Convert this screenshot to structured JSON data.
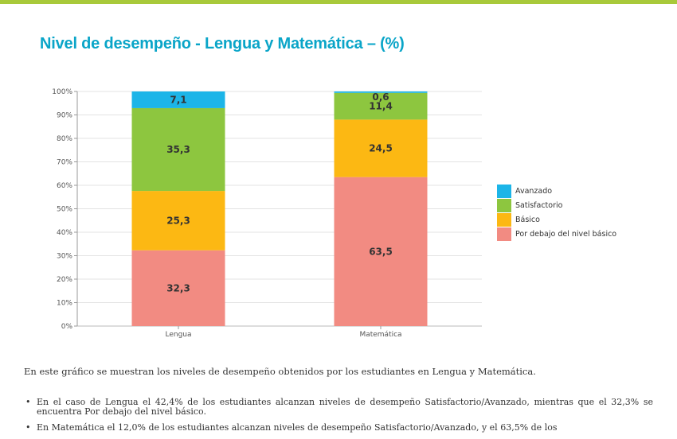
{
  "page": {
    "title": "Nivel de desempeño - Lengua y Matemática – (%)",
    "intro": "En este gráfico se muestran los niveles de desempeño obtenidos por los estudiantes en Lengua y Matemática.",
    "bullets": [
      "En el caso de Lengua el 42,4% de los estudiantes alcanzan niveles de desempeño Satisfactorio/Avanzado, mientras que el 32,3% se encuentra Por debajo del nivel básico.",
      "En Matemática el 12,0% de los estudiantes alcanzan niveles de desempeño Satisfactorio/Avanzado, y el 63,5% de los"
    ]
  },
  "chart_data": {
    "type": "bar",
    "stacked": true,
    "percent_stacked": true,
    "title": "",
    "categories": [
      "Lengua",
      "Matemática"
    ],
    "series": [
      {
        "name": "Por debajo del nivel básico",
        "values": [
          32.3,
          63.5
        ],
        "labels": [
          "32,3",
          "63,5"
        ],
        "color": "#f28b82"
      },
      {
        "name": "Básico",
        "values": [
          25.3,
          24.5
        ],
        "labels": [
          "25,3",
          "24,5"
        ],
        "color": "#fcb813"
      },
      {
        "name": "Satisfactorio",
        "values": [
          35.3,
          11.4
        ],
        "labels": [
          "35,3",
          "11,4"
        ],
        "color": "#8dc63f"
      },
      {
        "name": "Avanzado",
        "values": [
          7.1,
          0.6
        ],
        "labels": [
          "7,1",
          "0,6"
        ],
        "color": "#1cb5e8"
      }
    ],
    "yticks": [
      "0%",
      "10%",
      "20%",
      "30%",
      "40%",
      "50%",
      "60%",
      "70%",
      "80%",
      "90%",
      "100%"
    ],
    "ylim": [
      0,
      100
    ],
    "grid": true,
    "legend": {
      "position": "right",
      "order": [
        "Avanzado",
        "Satisfactorio",
        "Básico",
        "Por debajo del nivel básico"
      ]
    }
  }
}
